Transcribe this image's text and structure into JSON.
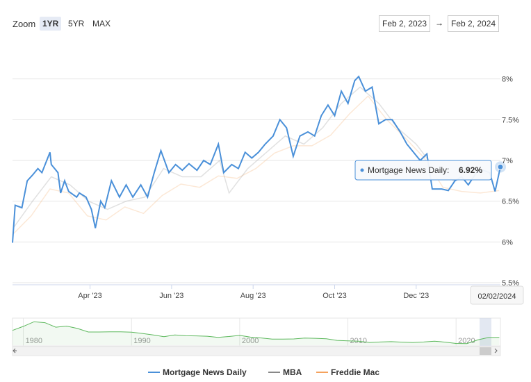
{
  "controls": {
    "zoom": "Zoom",
    "buttons": [
      "1YR",
      "5YR",
      "MAX"
    ],
    "from": "Feb 2, 2023",
    "arrow": "→",
    "to": "Feb 2, 2024"
  },
  "chart_data": {
    "type": "line",
    "xlim": [
      "2023-02-02",
      "2024-02-02"
    ],
    "xticks": [
      {
        "value": "2023-04-01",
        "label": "Apr '23"
      },
      {
        "value": "2023-06-01",
        "label": "Jun '23"
      },
      {
        "value": "2023-08-01",
        "label": "Aug '23"
      },
      {
        "value": "2023-10-01",
        "label": "Oct '23"
      },
      {
        "value": "2023-12-01",
        "label": "Dec '23"
      }
    ],
    "ylim": [
      5.5,
      8.5
    ],
    "yticks": [
      {
        "value": 5.5,
        "label": "5.5%"
      },
      {
        "value": 6,
        "label": "6%"
      },
      {
        "value": 6.5,
        "label": "6.5%"
      },
      {
        "value": 7,
        "label": "7%"
      },
      {
        "value": 7.5,
        "label": "7.5%"
      },
      {
        "value": 8,
        "label": "8%"
      }
    ],
    "grid": true,
    "series": [
      {
        "name": "Mortgage News Daily",
        "color": "#4a90d9",
        "x": [
          "2023-02-02",
          "2023-02-04",
          "2023-02-09",
          "2023-02-13",
          "2023-02-17",
          "2023-02-21",
          "2023-02-24",
          "2023-03-02",
          "2023-03-03",
          "2023-03-08",
          "2023-03-10",
          "2023-03-13",
          "2023-03-16",
          "2023-03-22",
          "2023-03-24",
          "2023-03-29",
          "2023-04-02",
          "2023-04-05",
          "2023-04-09",
          "2023-04-12",
          "2023-04-17",
          "2023-04-23",
          "2023-04-28",
          "2023-05-03",
          "2023-05-09",
          "2023-05-14",
          "2023-05-19",
          "2023-05-24",
          "2023-05-30",
          "2023-06-04",
          "2023-06-09",
          "2023-06-14",
          "2023-06-20",
          "2023-06-25",
          "2023-06-30",
          "2023-07-06",
          "2023-07-10",
          "2023-07-16",
          "2023-07-21",
          "2023-07-26",
          "2023-07-31",
          "2023-08-05",
          "2023-08-10",
          "2023-08-16",
          "2023-08-21",
          "2023-08-26",
          "2023-08-31",
          "2023-09-05",
          "2023-09-11",
          "2023-09-16",
          "2023-09-21",
          "2023-09-26",
          "2023-10-01",
          "2023-10-06",
          "2023-10-11",
          "2023-10-16",
          "2023-10-19",
          "2023-10-24",
          "2023-10-29",
          "2023-11-03",
          "2023-11-08",
          "2023-11-13",
          "2023-11-19",
          "2023-11-24",
          "2023-11-29",
          "2023-12-04",
          "2023-12-09",
          "2023-12-13",
          "2023-12-20",
          "2023-12-25",
          "2023-12-30",
          "2024-01-04",
          "2024-01-09",
          "2024-01-15",
          "2024-01-20",
          "2024-01-25",
          "2024-01-29",
          "2024-02-02"
        ],
        "values": [
          5.99,
          6.45,
          6.42,
          6.75,
          6.82,
          6.9,
          6.85,
          7.1,
          6.95,
          6.85,
          6.6,
          6.75,
          6.62,
          6.55,
          6.6,
          6.55,
          6.4,
          6.17,
          6.5,
          6.42,
          6.75,
          6.55,
          6.7,
          6.55,
          6.7,
          6.55,
          6.85,
          7.12,
          6.85,
          6.95,
          6.88,
          6.96,
          6.88,
          7.0,
          6.95,
          7.2,
          6.85,
          6.95,
          6.9,
          7.1,
          7.03,
          7.1,
          7.2,
          7.3,
          7.5,
          7.4,
          7.05,
          7.3,
          7.35,
          7.3,
          7.55,
          7.68,
          7.55,
          7.85,
          7.7,
          7.98,
          8.03,
          7.85,
          7.9,
          7.45,
          7.5,
          7.5,
          7.35,
          7.2,
          7.1,
          7.0,
          7.08,
          6.65,
          6.65,
          6.63,
          6.75,
          6.8,
          6.7,
          6.85,
          6.88,
          6.85,
          6.62,
          6.92
        ]
      },
      {
        "name": "MBA",
        "color": "#888888",
        "x": [
          "2023-02-03",
          "2023-02-17",
          "2023-03-03",
          "2023-03-17",
          "2023-03-31",
          "2023-04-14",
          "2023-04-28",
          "2023-05-12",
          "2023-05-26",
          "2023-06-09",
          "2023-06-23",
          "2023-07-07",
          "2023-07-14",
          "2023-07-28",
          "2023-08-11",
          "2023-08-25",
          "2023-09-08",
          "2023-09-22",
          "2023-10-06",
          "2023-10-20",
          "2023-11-03",
          "2023-11-17",
          "2023-12-01",
          "2023-12-15",
          "2023-12-29",
          "2024-01-12",
          "2024-01-26"
        ],
        "values": [
          6.18,
          6.5,
          6.8,
          6.7,
          6.5,
          6.4,
          6.5,
          6.55,
          6.9,
          6.8,
          6.8,
          7.0,
          6.6,
          6.9,
          7.1,
          7.3,
          7.2,
          7.4,
          7.7,
          7.9,
          7.7,
          7.4,
          7.2,
          6.9,
          6.75,
          6.8,
          6.85
        ]
      },
      {
        "name": "Freddie Mac",
        "color": "#f5a25d",
        "x": [
          "2023-02-02",
          "2023-02-16",
          "2023-03-02",
          "2023-03-16",
          "2023-03-30",
          "2023-04-13",
          "2023-04-27",
          "2023-05-11",
          "2023-05-25",
          "2023-06-08",
          "2023-06-22",
          "2023-07-06",
          "2023-07-20",
          "2023-08-03",
          "2023-08-17",
          "2023-08-31",
          "2023-09-14",
          "2023-09-28",
          "2023-10-12",
          "2023-10-26",
          "2023-11-09",
          "2023-11-22",
          "2023-12-07",
          "2023-12-21",
          "2024-01-04",
          "2024-01-18",
          "2024-02-01"
        ],
        "values": [
          6.09,
          6.32,
          6.65,
          6.6,
          6.32,
          6.27,
          6.43,
          6.35,
          6.57,
          6.71,
          6.67,
          6.81,
          6.78,
          6.9,
          7.09,
          7.18,
          7.18,
          7.31,
          7.57,
          7.79,
          7.5,
          7.29,
          7.03,
          6.67,
          6.62,
          6.6,
          6.63
        ]
      }
    ],
    "tooltip": {
      "label": "Mortgage News Daily:",
      "value": 6.92,
      "value_label": "6.92%",
      "date": "02/02/2024"
    }
  },
  "navigator": {
    "color": "#5cb85c",
    "xlim": [
      1979,
      2024.1
    ],
    "ylim": [
      2,
      18
    ],
    "xticks": [
      1980,
      1990,
      2000,
      2010,
      2020
    ],
    "x": [
      1979,
      1980,
      1981,
      1982,
      1983,
      1984,
      1985,
      1986,
      1987,
      1988,
      1989,
      1990,
      1991,
      1992,
      1993,
      1994,
      1995,
      1996,
      1997,
      1998,
      1999,
      2000,
      2001,
      2002,
      2003,
      2004,
      2005,
      2006,
      2007,
      2008,
      2009,
      2010,
      2011,
      2012,
      2013,
      2014,
      2015,
      2016,
      2017,
      2018,
      2019,
      2020,
      2021,
      2022,
      2023,
      2024
    ],
    "values": [
      11.2,
      13.7,
      16.6,
      16.0,
      13.2,
      13.9,
      12.4,
      10.2,
      10.2,
      10.3,
      10.3,
      10.1,
      9.3,
      8.4,
      7.3,
      8.4,
      7.9,
      7.8,
      7.6,
      6.9,
      7.4,
      8.1,
      7.0,
      6.5,
      5.8,
      5.8,
      5.9,
      6.4,
      6.3,
      6.0,
      5.0,
      4.7,
      4.5,
      3.7,
      4.0,
      4.2,
      3.9,
      3.7,
      4.0,
      4.5,
      3.9,
      3.1,
      3.0,
      5.3,
      6.8,
      6.9
    ]
  },
  "legend": {
    "position": "bottom"
  }
}
